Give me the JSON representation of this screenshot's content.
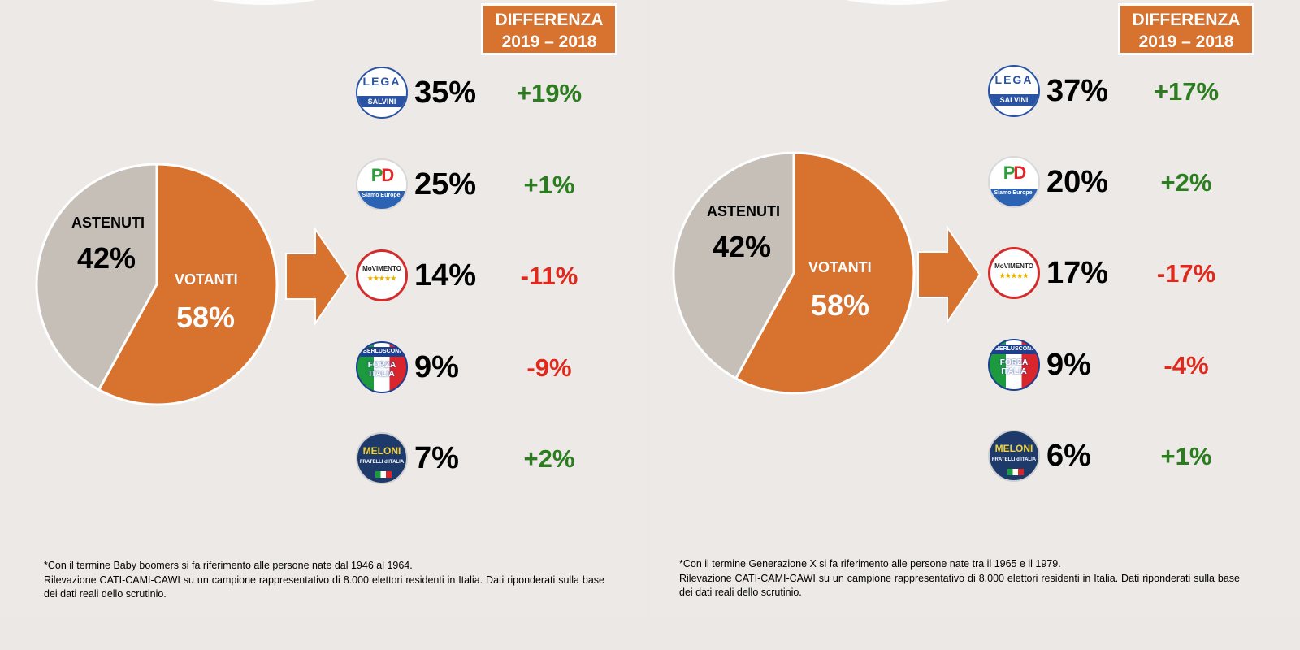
{
  "colors": {
    "orange": "#d8722f",
    "grey": "#c6bfb8",
    "positive": "#2b7d1f",
    "negative": "#e0281c"
  },
  "panels": [
    {
      "header": {
        "line1": "DIFFERENZA",
        "line2": "2019 – 2018"
      },
      "footnote": {
        "line1": "*Con il termine Baby boomers si fa riferimento alle persone nate dal 1946 al 1964.",
        "line2": "Rilevazione CATI-CAMI-CAWI su un campione rappresentativo di 8.000 elettori residenti in Italia. Dati riponderati sulla base dei dati reali dello scrutinio."
      },
      "pie_labels": {
        "astenuti_label": "ASTENUTI",
        "astenuti_value": "42%",
        "votanti_label": "VOTANTI",
        "votanti_value": "58%"
      },
      "parties": [
        {
          "logo": "lega-logo",
          "logo_text": "LEGA",
          "logo_sub": "SALVINI",
          "value": "35%",
          "diff": "+19%"
        },
        {
          "logo": "pd-logo",
          "logo_text": "PD",
          "logo_sub": "Siamo Europei",
          "value": "25%",
          "diff": "+1%"
        },
        {
          "logo": "m5s-logo",
          "logo_text": "MoVIMENTO",
          "logo_sub": "★★★★★",
          "value": "14%",
          "diff": "-11%"
        },
        {
          "logo": "forza-italia-logo",
          "logo_text": "FORZA ITALIA",
          "logo_sub": "BERLUSCONI",
          "value": "9%",
          "diff": "-9%"
        },
        {
          "logo": "fdi-logo",
          "logo_text": "MELONI",
          "logo_sub": "FRATELLI d'ITALIA",
          "value": "7%",
          "diff": "+2%"
        }
      ]
    },
    {
      "header": {
        "line1": "DIFFERENZA",
        "line2": "2019 – 2018"
      },
      "footnote": {
        "line1": "*Con il termine Generazione X si fa riferimento alle persone nate tra il 1965 e il 1979.",
        "line2": "Rilevazione CATI-CAMI-CAWI su un campione rappresentativo di 8.000 elettori residenti in Italia. Dati riponderati sulla base dei dati reali dello scrutinio."
      },
      "pie_labels": {
        "astenuti_label": "ASTENUTI",
        "astenuti_value": "42%",
        "votanti_label": "VOTANTI",
        "votanti_value": "58%"
      },
      "parties": [
        {
          "logo": "lega-logo",
          "logo_text": "LEGA",
          "logo_sub": "SALVINI",
          "value": "37%",
          "diff": "+17%"
        },
        {
          "logo": "pd-logo",
          "logo_text": "PD",
          "logo_sub": "Siamo Europei",
          "value": "20%",
          "diff": "+2%"
        },
        {
          "logo": "m5s-logo",
          "logo_text": "MoVIMENTO",
          "logo_sub": "★★★★★",
          "value": "17%",
          "diff": "-17%"
        },
        {
          "logo": "forza-italia-logo",
          "logo_text": "FORZA ITALIA",
          "logo_sub": "BERLUSCONI",
          "value": "9%",
          "diff": "-4%"
        },
        {
          "logo": "fdi-logo",
          "logo_text": "MELONI",
          "logo_sub": "FRATELLI d'ITALIA",
          "value": "6%",
          "diff": "+1%"
        }
      ]
    }
  ],
  "chart_data": [
    {
      "type": "pie",
      "slices": [
        {
          "label": "ASTENUTI",
          "value": 42
        },
        {
          "label": "VOTANTI",
          "value": 58
        }
      ],
      "breakdown": {
        "type": "table",
        "columns": [
          "party",
          "2019",
          "DIFFERENZA 2019 – 2018"
        ],
        "rows": [
          [
            "LEGA",
            35,
            19
          ],
          [
            "PD",
            25,
            1
          ],
          [
            "MoVIMENTO 5 STELLE",
            14,
            -11
          ],
          [
            "FORZA ITALIA",
            9,
            -9
          ],
          [
            "FRATELLI D'ITALIA",
            7,
            2
          ]
        ]
      }
    },
    {
      "type": "pie",
      "slices": [
        {
          "label": "ASTENUTI",
          "value": 42
        },
        {
          "label": "VOTANTI",
          "value": 58
        }
      ],
      "breakdown": {
        "type": "table",
        "columns": [
          "party",
          "2019",
          "DIFFERENZA 2019 – 2018"
        ],
        "rows": [
          [
            "LEGA",
            37,
            17
          ],
          [
            "PD",
            20,
            2
          ],
          [
            "MoVIMENTO 5 STELLE",
            17,
            -17
          ],
          [
            "FORZA ITALIA",
            9,
            -4
          ],
          [
            "FRATELLI D'ITALIA",
            6,
            1
          ]
        ]
      }
    }
  ]
}
